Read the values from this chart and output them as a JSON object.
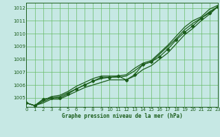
{
  "xlabel": "Graphe pression niveau de la mer (hPa)",
  "ylim": [
    1004.3,
    1012.4
  ],
  "xlim": [
    0,
    23
  ],
  "background_color": "#c6e8e4",
  "grid_color": "#66bb66",
  "line_color": "#1a5c1a",
  "spine_color": "#1a5c1a",
  "hours": [
    0,
    1,
    2,
    3,
    4,
    5,
    6,
    7,
    8,
    9,
    10,
    11,
    12,
    13,
    14,
    15,
    16,
    17,
    18,
    19,
    20,
    21,
    22,
    23
  ],
  "line1": [
    1004.6,
    1004.4,
    1004.6,
    1004.9,
    1004.9,
    1005.2,
    1005.5,
    1005.8,
    1006.0,
    1006.2,
    1006.4,
    1006.4,
    1006.4,
    1006.7,
    1007.2,
    1007.5,
    1008.0,
    1008.5,
    1009.2,
    1009.9,
    1010.4,
    1011.0,
    1011.5,
    1012.1
  ],
  "line2": [
    1004.6,
    1004.4,
    1004.7,
    1005.0,
    1005.1,
    1005.4,
    1005.7,
    1006.0,
    1006.3,
    1006.5,
    1006.6,
    1006.6,
    1006.7,
    1007.1,
    1007.6,
    1007.8,
    1008.4,
    1009.0,
    1009.6,
    1010.3,
    1010.8,
    1011.2,
    1011.7,
    1012.1
  ],
  "line3": [
    1004.6,
    1004.4,
    1004.8,
    1005.1,
    1005.2,
    1005.5,
    1005.9,
    1006.2,
    1006.5,
    1006.7,
    1006.7,
    1006.7,
    1006.8,
    1007.3,
    1007.7,
    1007.9,
    1008.5,
    1009.1,
    1009.8,
    1010.5,
    1011.0,
    1011.3,
    1011.9,
    1012.2
  ],
  "line_marker": [
    1004.6,
    1004.4,
    1004.9,
    1005.0,
    1005.0,
    1005.3,
    1005.7,
    1006.0,
    1006.3,
    1006.6,
    1006.6,
    1006.7,
    1006.4,
    1006.8,
    1007.6,
    1007.8,
    1008.2,
    1008.8,
    1009.5,
    1010.1,
    1010.6,
    1011.2,
    1011.6,
    1012.1
  ],
  "yticks": [
    1005,
    1006,
    1007,
    1008,
    1009,
    1010,
    1011,
    1012
  ],
  "xticks": [
    0,
    1,
    2,
    3,
    4,
    5,
    6,
    7,
    8,
    9,
    10,
    11,
    12,
    13,
    14,
    15,
    16,
    17,
    18,
    19,
    20,
    21,
    22,
    23
  ],
  "xlabel_fontsize": 5.5,
  "tick_fontsize": 5,
  "linewidth": 0.9,
  "marker_size": 2.2
}
